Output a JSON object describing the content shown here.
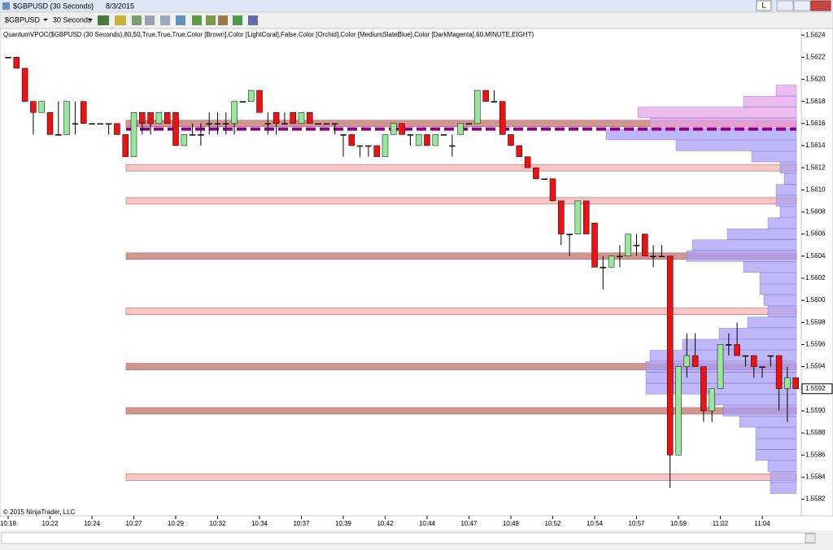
{
  "window": {
    "title": "$GBPUSD (30 Seconds)",
    "date": "8/3/2015",
    "button": "L"
  },
  "toolbar": {
    "instrument": "$GBPUSD",
    "period": "30 Seconds"
  },
  "chart_data": {
    "type": "candlestick",
    "indicator_label": "QuantumVPOC($GBPUSD (30 Seconds),80,50,True,True,True,Color [Brown],Color [LightCoral],False,Color [Orchid],Color [MediumSlateBlue],Color [DarkMagenta],60,MINUTE,EIGHT)",
    "copyright": "© 2015 NinjaTrader, LLC",
    "categories": [
      "10:19",
      null,
      null,
      null,
      null,
      "10:22",
      null,
      null,
      null,
      null,
      "10:24",
      null,
      null,
      null,
      null,
      "10:27",
      null,
      null,
      null,
      null,
      "10:29",
      null,
      null,
      null,
      null,
      "10:32",
      null,
      null,
      null,
      null,
      "10:34",
      null,
      null,
      null,
      null,
      "10:37",
      null,
      null,
      null,
      null,
      "10:39",
      null,
      null,
      null,
      null,
      "10:42",
      null,
      null,
      null,
      null,
      "10:44",
      null,
      null,
      null,
      null,
      "10:47",
      null,
      null,
      null,
      null,
      "10:49",
      null,
      null,
      null,
      null,
      "10:52",
      null,
      null,
      null,
      null,
      "10:54",
      null,
      null,
      null,
      null,
      "10:57",
      null,
      null,
      null,
      null,
      "10:59",
      null,
      null,
      null,
      null,
      "11:02",
      null,
      null,
      null,
      null,
      "11:04",
      null,
      null,
      null,
      null
    ],
    "open": [
      1.5622,
      1.5622,
      1.5621,
      1.5618,
      1.5617,
      1.5617,
      1.5615,
      1.5615,
      1.5616,
      1.5618,
      1.5616,
      1.5616,
      1.5616,
      1.5616,
      1.5615,
      1.5613,
      1.5617,
      1.5617,
      1.5616,
      1.5617,
      1.5617,
      1.5614,
      1.5615,
      1.5615,
      1.5616,
      1.5616,
      1.5616,
      1.5616,
      1.5618,
      1.5618,
      1.5619,
      1.5616,
      1.5617,
      1.5616,
      1.5617,
      1.5616,
      1.5617,
      1.5616,
      1.5616,
      1.5616,
      1.5615,
      1.5615,
      1.5614,
      1.5614,
      1.5614,
      1.5613,
      1.5615,
      1.5616,
      1.5615,
      1.5614,
      1.5615,
      1.5614,
      1.5615,
      1.5614,
      1.5615,
      1.5616,
      1.5616,
      1.5619,
      1.5618,
      1.5618,
      1.5615,
      1.5614,
      1.5613,
      1.5612,
      1.5611,
      1.5611,
      1.5609,
      1.5606,
      1.5606,
      1.5609,
      1.5607,
      1.5603,
      1.5603,
      1.5604,
      1.5604,
      1.5605,
      1.5606,
      1.5604,
      1.5604,
      1.5604,
      1.5586,
      1.5594,
      1.5595,
      1.5594,
      1.559,
      1.5592,
      1.5596,
      1.5596,
      1.5595,
      1.5595,
      1.5594,
      1.5595,
      1.5595,
      1.5592,
      1.5593
    ],
    "high": [
      1.5622,
      1.5622,
      1.5621,
      1.5618,
      1.5618,
      1.5617,
      1.5618,
      1.5618,
      1.5618,
      1.5618,
      1.5616,
      1.5616,
      1.5616,
      1.5616,
      1.5615,
      1.5617,
      1.5617,
      1.5617,
      1.5617,
      1.5617,
      1.5617,
      1.5615,
      1.5616,
      1.5616,
      1.5617,
      1.5617,
      1.5617,
      1.5618,
      1.5618,
      1.5619,
      1.5619,
      1.5617,
      1.5617,
      1.5617,
      1.5617,
      1.5617,
      1.5617,
      1.5616,
      1.5616,
      1.5616,
      1.5615,
      1.5615,
      1.5614,
      1.5614,
      1.5614,
      1.5615,
      1.5616,
      1.5616,
      1.5615,
      1.5615,
      1.5615,
      1.5615,
      1.5615,
      1.5615,
      1.5616,
      1.5616,
      1.5619,
      1.5619,
      1.5619,
      1.5618,
      1.5615,
      1.5614,
      1.5613,
      1.5612,
      1.5611,
      1.5611,
      1.5609,
      1.5606,
      1.5609,
      1.5609,
      1.5607,
      1.5604,
      1.5604,
      1.5605,
      1.5606,
      1.5606,
      1.5606,
      1.5605,
      1.5605,
      1.5604,
      1.5594,
      1.5597,
      1.5597,
      1.5594,
      1.5592,
      1.5596,
      1.5597,
      1.5598,
      1.5595,
      1.5595,
      1.5594,
      1.5595,
      1.5595,
      1.5594,
      1.5593
    ],
    "low": [
      1.5622,
      1.5621,
      1.5618,
      1.5615,
      1.5617,
      1.5615,
      1.5615,
      1.5615,
      1.5615,
      1.5616,
      1.5616,
      1.5616,
      1.5615,
      1.5615,
      1.5613,
      1.5613,
      1.5615,
      1.5615,
      1.5616,
      1.5616,
      1.5614,
      1.5614,
      1.5615,
      1.5614,
      1.5615,
      1.5615,
      1.5615,
      1.5615,
      1.5618,
      1.5618,
      1.5617,
      1.5615,
      1.5615,
      1.5616,
      1.5616,
      1.5616,
      1.5616,
      1.5616,
      1.5616,
      1.5615,
      1.5613,
      1.5614,
      1.5613,
      1.5613,
      1.5613,
      1.5613,
      1.5615,
      1.5615,
      1.5614,
      1.5614,
      1.5614,
      1.5614,
      1.5615,
      1.5613,
      1.5615,
      1.5616,
      1.5616,
      1.5618,
      1.5618,
      1.5615,
      1.5614,
      1.5613,
      1.5612,
      1.5611,
      1.5611,
      1.5609,
      1.5605,
      1.5604,
      1.5606,
      1.5606,
      1.5603,
      1.5601,
      1.5603,
      1.5603,
      1.5604,
      1.5604,
      1.5604,
      1.5603,
      1.5604,
      1.5583,
      1.5586,
      1.5593,
      1.5594,
      1.5589,
      1.5589,
      1.5592,
      1.5595,
      1.5595,
      1.5594,
      1.5593,
      1.5593,
      1.5594,
      1.559,
      1.5589,
      1.5592
    ],
    "close": [
      1.5622,
      1.5621,
      1.5618,
      1.5617,
      1.5618,
      1.5615,
      1.5615,
      1.5618,
      1.5616,
      1.5616,
      1.5616,
      1.5616,
      1.5616,
      1.5615,
      1.5613,
      1.5617,
      1.5616,
      1.5616,
      1.5617,
      1.5616,
      1.5614,
      1.5615,
      1.5615,
      1.5615,
      1.5616,
      1.5616,
      1.5616,
      1.5618,
      1.5618,
      1.5619,
      1.5617,
      1.5616,
      1.5616,
      1.5616,
      1.5616,
      1.5617,
      1.5616,
      1.5616,
      1.5616,
      1.5616,
      1.5615,
      1.5614,
      1.5614,
      1.5614,
      1.5613,
      1.5615,
      1.5616,
      1.5615,
      1.5615,
      1.5615,
      1.5614,
      1.5615,
      1.5615,
      1.5614,
      1.5616,
      1.5616,
      1.5619,
      1.5618,
      1.5618,
      1.5615,
      1.5614,
      1.5613,
      1.5612,
      1.5611,
      1.5611,
      1.5609,
      1.5606,
      1.5606,
      1.5609,
      1.5606,
      1.5603,
      1.5603,
      1.5604,
      1.5604,
      1.5606,
      1.5605,
      1.5604,
      1.5604,
      1.5604,
      1.5586,
      1.5594,
      1.5595,
      1.5594,
      1.559,
      1.5592,
      1.5596,
      1.5596,
      1.5595,
      1.5595,
      1.5594,
      1.5594,
      1.5595,
      1.5592,
      1.5593,
      1.5592
    ],
    "up_color": "#98e89c",
    "down_color": "#ee1111",
    "outline_color": "#000000",
    "zones": [
      {
        "value": 1.5616,
        "color": "#cc8a86"
      },
      {
        "value": 1.5612,
        "color": "#f8c0c0"
      },
      {
        "value": 1.5609,
        "color": "#f8c0c0"
      },
      {
        "value": 1.5604,
        "color": "#cc8a86"
      },
      {
        "value": 1.5599,
        "color": "#f8c0c0"
      },
      {
        "value": 1.5594,
        "color": "#cc8a86"
      },
      {
        "value": 1.559,
        "color": "#cc8a86"
      },
      {
        "value": 1.5584,
        "color": "#f8c0c0"
      }
    ],
    "vpoc": 1.56155,
    "vpoc_color": "#8b008b",
    "profiles": [
      {
        "color": "#e8a4e8",
        "levels": [
          1.5619,
          1.5618,
          1.5617,
          1.5616
        ],
        "values": [
          25,
          65,
          195,
          180
        ]
      },
      {
        "color": "#a99ff4",
        "levels": [
          1.5615,
          1.5614,
          1.5613,
          1.5612,
          1.5611,
          1.561,
          1.5609,
          1.5608,
          1.5607,
          1.5606,
          1.5605,
          1.5604,
          1.5603,
          1.5602,
          1.5601,
          1.56,
          1.5599,
          1.5598,
          1.5597,
          1.5596,
          1.5595,
          1.5594,
          1.5593,
          1.5592,
          1.5591,
          1.559,
          1.5589,
          1.5588,
          1.5587,
          1.5586,
          1.5585,
          1.5584,
          1.5583
        ],
        "values": [
          234,
          148,
          55,
          20,
          15,
          25,
          25,
          20,
          35,
          85,
          128,
          135,
          65,
          45,
          45,
          40,
          35,
          60,
          95,
          140,
          180,
          185,
          185,
          185,
          100,
          90,
          70,
          50,
          50,
          50,
          35,
          32,
          32
        ]
      }
    ],
    "last_price": 1.5592,
    "ylim": [
      1.55805,
      1.56246
    ],
    "yticks": [
      1.5624,
      1.5622,
      {
        "value": 1.562,
        "label": "1.5620"
      },
      1.5618,
      1.5616,
      1.5614,
      1.5612,
      {
        "value": 1.561,
        "label": "1.5610"
      },
      1.5608,
      1.5606,
      1.5604,
      1.5602,
      {
        "value": 1.56,
        "label": "1.5600"
      },
      1.5598,
      1.5596,
      1.5594,
      1.5592,
      {
        "value": 1.559,
        "label": "1.5590"
      },
      1.5588,
      1.5586,
      1.5584,
      1.5582
    ]
  }
}
